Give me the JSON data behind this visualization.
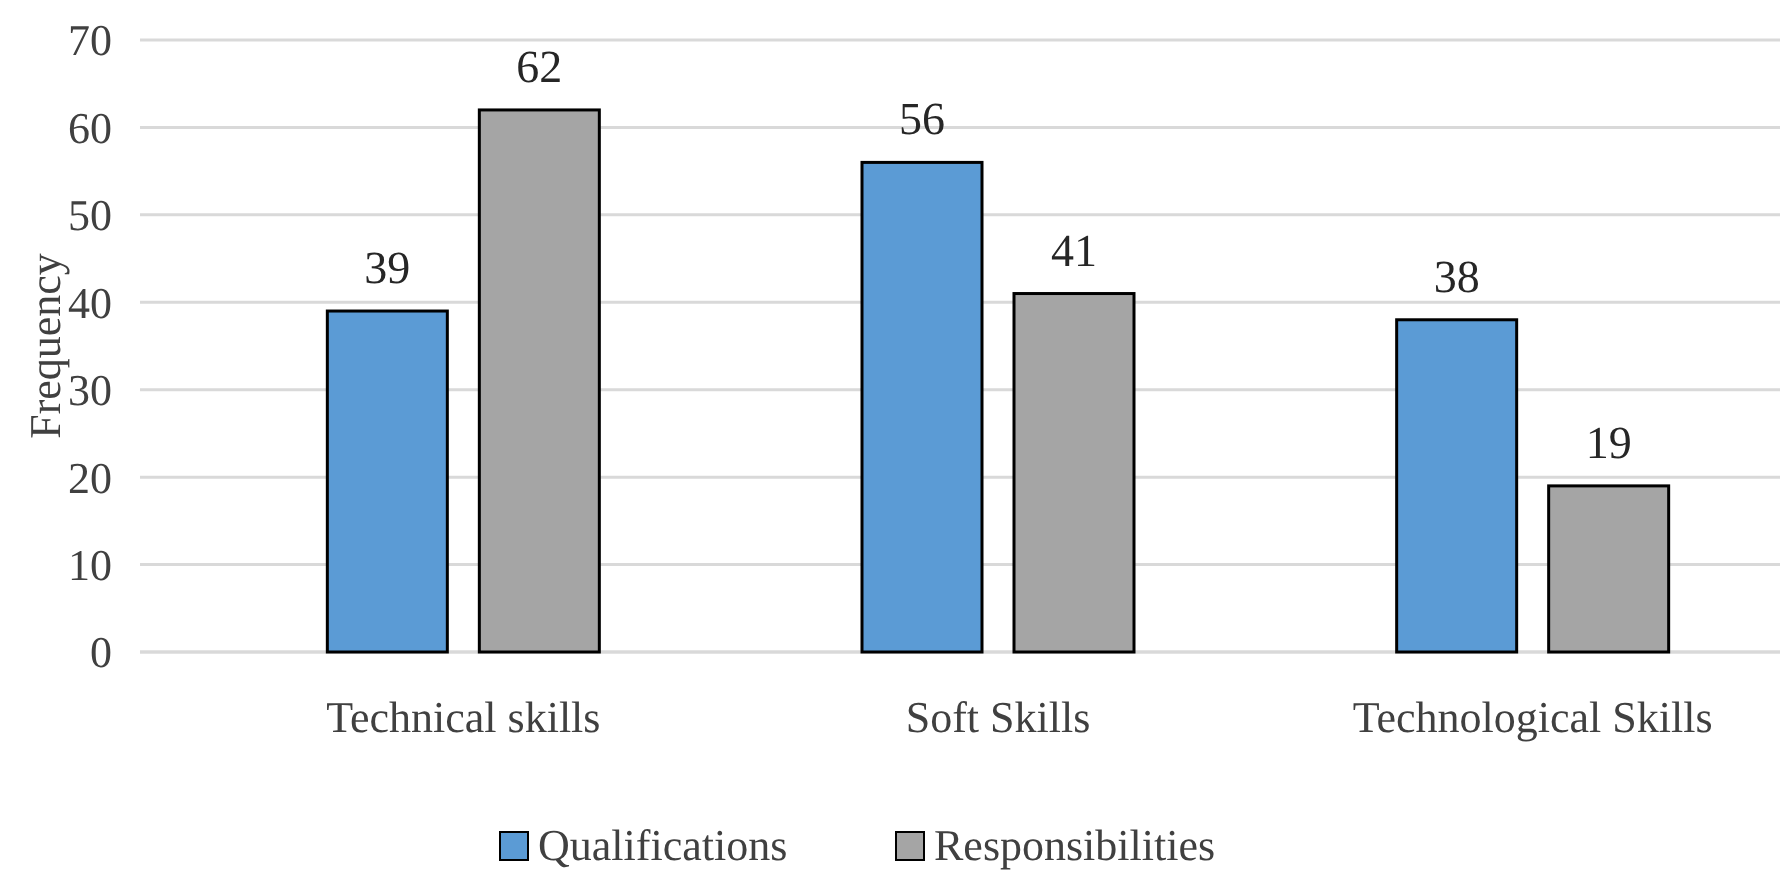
{
  "chart_data": {
    "type": "bar",
    "ylabel": "Frequency",
    "categories": [
      "Technical skills",
      "Soft Skills",
      "Technological Skills"
    ],
    "series": [
      {
        "name": "Qualifications",
        "color": "#5b9bd5",
        "values": [
          39,
          56,
          38
        ]
      },
      {
        "name": "Responsibilities",
        "color": "#a5a5a5",
        "values": [
          62,
          41,
          19
        ]
      }
    ],
    "ylim": [
      0,
      70
    ],
    "yticks": [
      0,
      10,
      20,
      30,
      40,
      50,
      60,
      70
    ],
    "grid": "y",
    "legend": "bottom",
    "data_labels": true
  }
}
